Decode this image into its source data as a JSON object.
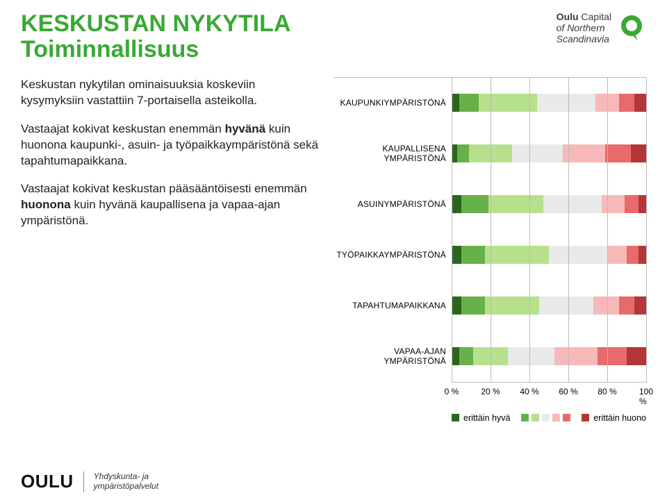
{
  "title": {
    "line1": "KESKUSTAN NYKYTILA",
    "line2": "Toiminnallisuus"
  },
  "logo": {
    "brand": "Oulu",
    "tag1": "Capital",
    "tag2": "of Northern",
    "tag3": "Scandinavia"
  },
  "paragraphs": {
    "p1": "Keskustan nykytilan ominaisuuksia koskeviin kysymyksiin vastattiin 7-portaisella asteikolla.",
    "p2a": "Vastaajat kokivat keskustan enemmän ",
    "p2b": "hyvänä",
    "p2c": " kuin huonona kaupunki-, asuin- ja työpaikkaympäristönä sekä tapahtumapaikkana.",
    "p3a": "Vastaajat kokivat keskustan pääsääntöisesti enemmän ",
    "p3b": "huonona",
    "p3c": " kuin hyvänä kaupallisena ja vapaa-ajan ympäristönä."
  },
  "chart": {
    "colors": [
      "#2b661f",
      "#66b14a",
      "#b7e08c",
      "#e9e9e9",
      "#f7b9b9",
      "#e86a6a",
      "#b33737"
    ],
    "x": {
      "min": 0,
      "max": 100,
      "ticks": [
        0,
        20,
        40,
        60,
        80,
        100
      ],
      "suffix": " %"
    },
    "grid_color": "#bbbbbb",
    "legend": {
      "left": "erittäin hyvä",
      "right": "erittäin huono"
    },
    "rows": [
      {
        "label": "KAUPUNKIYMPÄRISTÖNÄ",
        "values": [
          4,
          10,
          30,
          30,
          12,
          8,
          6
        ]
      },
      {
        "label": "KAUPALLISENA YMPÄRISTÖNÄ",
        "values": [
          3,
          6,
          22,
          26,
          22,
          13,
          8
        ]
      },
      {
        "label": "ASUINYMPÄRISTÖNÄ",
        "values": [
          5,
          14,
          28,
          30,
          12,
          7,
          4
        ]
      },
      {
        "label": "TYÖPAIKKAYMPÄRISTÖNÄ",
        "values": [
          5,
          12,
          33,
          30,
          10,
          6,
          4
        ]
      },
      {
        "label": "TAPAHTUMAPAIKKANA",
        "values": [
          5,
          12,
          28,
          28,
          13,
          8,
          6
        ]
      },
      {
        "label": "VAPAA-AJAN YMPÄRISTÖNÄ",
        "values": [
          4,
          7,
          18,
          24,
          22,
          15,
          10
        ]
      }
    ]
  },
  "footer": {
    "logo": "OULU",
    "line1": "Yhdyskunta- ja",
    "line2": "ympäristöpalvelut"
  }
}
